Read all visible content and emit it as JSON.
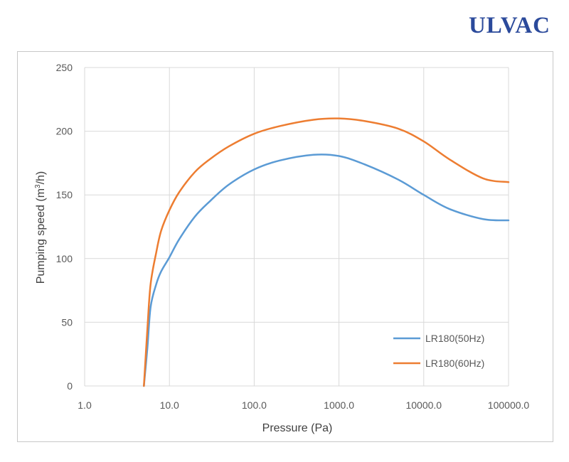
{
  "brand": {
    "logo_text": "ULVAC"
  },
  "chart_data": {
    "type": "line",
    "title": "",
    "xlabel": "Pressure (Pa)",
    "ylabel_main": "Pumping speed (m",
    "ylabel_sup": "3",
    "ylabel_tail": "/h)",
    "x_scale": "log",
    "xlim": [
      1,
      100000
    ],
    "ylim": [
      0,
      250
    ],
    "x_tick_values": [
      1,
      10,
      100,
      1000,
      10000,
      100000
    ],
    "x_tick_labels": [
      "1.0",
      "10.0",
      "100.0",
      "1000.0",
      "10000.0",
      "100000.0"
    ],
    "y_tick_values": [
      0,
      50,
      100,
      150,
      200,
      250
    ],
    "y_tick_labels": [
      "0",
      "50",
      "100",
      "150",
      "200",
      "250"
    ],
    "grid": true,
    "legend_position": "lower-right",
    "series": [
      {
        "name": "LR180(50Hz)",
        "color": "#5b9bd5",
        "x": [
          5,
          5.5,
          6,
          7,
          8,
          10,
          13,
          20,
          30,
          50,
          100,
          200,
          500,
          1000,
          2000,
          5000,
          10000,
          20000,
          50000,
          100000
        ],
        "y": [
          0,
          30,
          62,
          80,
          90,
          101,
          115,
          133,
          145,
          158,
          170,
          177,
          181.5,
          180.5,
          174,
          162,
          150,
          139,
          131,
          130
        ]
      },
      {
        "name": "LR180(60Hz)",
        "color": "#ed7d31",
        "x": [
          5,
          5.5,
          6,
          7,
          8,
          10,
          13,
          20,
          30,
          50,
          100,
          200,
          500,
          1000,
          2000,
          5000,
          10000,
          20000,
          50000,
          100000
        ],
        "y": [
          0,
          45,
          80,
          105,
          122,
          138,
          152,
          168,
          178,
          188,
          198,
          204,
          209,
          210,
          208,
          202,
          192,
          178,
          163,
          160
        ]
      }
    ]
  }
}
